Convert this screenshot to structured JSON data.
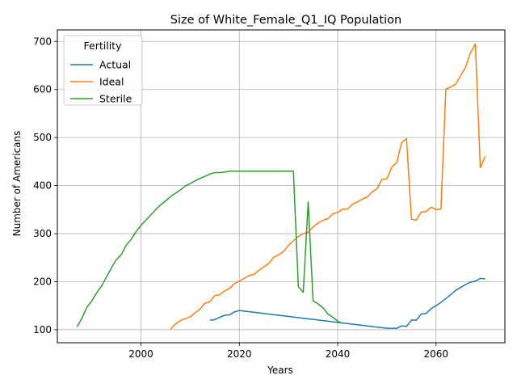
{
  "chart_data": {
    "type": "line",
    "title": "Size of White_Female_Q1_IQ Population",
    "xlabel": "Years",
    "ylabel": "Number of Americans",
    "xlim": [
      1983,
      2074
    ],
    "ylim": [
      73,
      724
    ],
    "xticks": [
      2000,
      2020,
      2040,
      2060
    ],
    "yticks": [
      100,
      200,
      300,
      400,
      500,
      600,
      700
    ],
    "grid": true,
    "legend": {
      "title": "Fertility",
      "placement": "top-left"
    },
    "series": [
      {
        "name": "Actual",
        "color": "#1f77b4",
        "points": [
          [
            2014,
            120
          ],
          [
            2015,
            121
          ],
          [
            2016,
            126
          ],
          [
            2017,
            130
          ],
          [
            2018,
            131
          ],
          [
            2019,
            137
          ],
          [
            2020,
            140
          ],
          [
            2050,
            103
          ],
          [
            2052,
            103
          ],
          [
            2053,
            108
          ],
          [
            2054,
            107
          ],
          [
            2055,
            120
          ],
          [
            2056,
            120
          ],
          [
            2057,
            133
          ],
          [
            2058,
            134
          ],
          [
            2059,
            144
          ],
          [
            2060,
            150
          ],
          [
            2061,
            157
          ],
          [
            2062,
            165
          ],
          [
            2063,
            173
          ],
          [
            2064,
            182
          ],
          [
            2065,
            188
          ],
          [
            2066,
            194
          ],
          [
            2067,
            199
          ],
          [
            2068,
            201
          ],
          [
            2069,
            207
          ],
          [
            2070,
            206
          ]
        ]
      },
      {
        "name": "Ideal",
        "color": "#ff7f0e",
        "points": [
          [
            2006,
            101
          ],
          [
            2007,
            112
          ],
          [
            2008,
            119
          ],
          [
            2009,
            123
          ],
          [
            2010,
            127
          ],
          [
            2011,
            135
          ],
          [
            2012,
            143
          ],
          [
            2013,
            155
          ],
          [
            2014,
            158
          ],
          [
            2015,
            171
          ],
          [
            2016,
            173
          ],
          [
            2017,
            181
          ],
          [
            2018,
            186
          ],
          [
            2019,
            196
          ],
          [
            2020,
            201
          ],
          [
            2021,
            207
          ],
          [
            2022,
            213
          ],
          [
            2023,
            215
          ],
          [
            2024,
            224
          ],
          [
            2025,
            231
          ],
          [
            2026,
            238
          ],
          [
            2027,
            251
          ],
          [
            2028,
            256
          ],
          [
            2029,
            263
          ],
          [
            2030,
            276
          ],
          [
            2031,
            285
          ],
          [
            2032,
            294
          ],
          [
            2033,
            300
          ],
          [
            2034,
            303
          ],
          [
            2035,
            314
          ],
          [
            2036,
            322
          ],
          [
            2037,
            328
          ],
          [
            2038,
            331
          ],
          [
            2039,
            341
          ],
          [
            2040,
            344
          ],
          [
            2041,
            351
          ],
          [
            2042,
            351
          ],
          [
            2043,
            361
          ],
          [
            2044,
            366
          ],
          [
            2045,
            372
          ],
          [
            2046,
            376
          ],
          [
            2047,
            387
          ],
          [
            2048,
            393
          ],
          [
            2049,
            413
          ],
          [
            2050,
            414
          ],
          [
            2051,
            438
          ],
          [
            2052,
            448
          ],
          [
            2053,
            489
          ],
          [
            2054,
            498
          ],
          [
            2055,
            330
          ],
          [
            2056,
            328
          ],
          [
            2057,
            345
          ],
          [
            2058,
            346
          ],
          [
            2059,
            355
          ],
          [
            2060,
            350
          ],
          [
            2061,
            351
          ],
          [
            2062,
            601
          ],
          [
            2063,
            605
          ],
          [
            2064,
            611
          ],
          [
            2065,
            629
          ],
          [
            2066,
            646
          ],
          [
            2067,
            676
          ],
          [
            2068,
            695
          ],
          [
            2069,
            437
          ],
          [
            2070,
            461
          ]
        ]
      },
      {
        "name": "Sterile",
        "color": "#2ca02c",
        "points": [
          [
            1987,
            106
          ],
          [
            1988,
            124
          ],
          [
            1989,
            147
          ],
          [
            1990,
            160
          ],
          [
            1991,
            177
          ],
          [
            1992,
            191
          ],
          [
            1993,
            210
          ],
          [
            1994,
            229
          ],
          [
            1995,
            246
          ],
          [
            1996,
            256
          ],
          [
            1997,
            276
          ],
          [
            1998,
            288
          ],
          [
            1999,
            304
          ],
          [
            2000,
            317
          ],
          [
            2001,
            328
          ],
          [
            2002,
            339
          ],
          [
            2003,
            350
          ],
          [
            2004,
            360
          ],
          [
            2005,
            368
          ],
          [
            2006,
            377
          ],
          [
            2007,
            384
          ],
          [
            2008,
            391
          ],
          [
            2009,
            399
          ],
          [
            2010,
            404
          ],
          [
            2011,
            410
          ],
          [
            2012,
            415
          ],
          [
            2013,
            419
          ],
          [
            2014,
            424
          ],
          [
            2015,
            427
          ],
          [
            2016,
            427
          ],
          [
            2017,
            428
          ],
          [
            2018,
            430
          ],
          [
            2019,
            430
          ],
          [
            2020,
            430
          ],
          [
            2025,
            430
          ],
          [
            2030,
            430
          ],
          [
            2031,
            430
          ],
          [
            2032,
            190
          ],
          [
            2033,
            178
          ],
          [
            2034,
            366
          ],
          [
            2035,
            160
          ],
          [
            2036,
            154
          ],
          [
            2037,
            146
          ],
          [
            2038,
            133
          ],
          [
            2039,
            126
          ],
          [
            2040,
            118
          ],
          [
            2041,
            113
          ]
        ]
      }
    ]
  }
}
